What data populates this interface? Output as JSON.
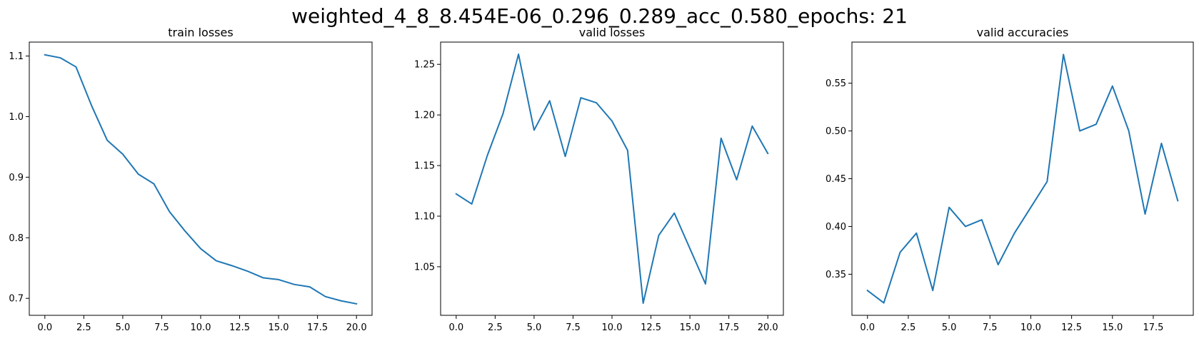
{
  "figure_title": "weighted_4_8_8.454E-06_0.296_0.289_acc_0.580_epochs: 21",
  "line_color": "#1f77b4",
  "chart_data": [
    {
      "type": "line",
      "title": "train losses",
      "x": [
        0,
        1,
        2,
        3,
        4,
        5,
        6,
        7,
        8,
        9,
        10,
        11,
        12,
        13,
        14,
        15,
        16,
        17,
        18,
        19,
        20
      ],
      "values": [
        1.102,
        1.097,
        1.082,
        1.018,
        0.961,
        0.938,
        0.905,
        0.889,
        0.843,
        0.811,
        0.782,
        0.762,
        0.754,
        0.745,
        0.734,
        0.731,
        0.723,
        0.719,
        0.703,
        0.696,
        0.691
      ],
      "xlim": [
        -1.0,
        21.0
      ],
      "ylim": [
        0.672,
        1.123
      ],
      "xticks": [
        0.0,
        2.5,
        5.0,
        7.5,
        10.0,
        12.5,
        15.0,
        17.5,
        20.0
      ],
      "xtick_labels": [
        "0.0",
        "2.5",
        "5.0",
        "7.5",
        "10.0",
        "12.5",
        "15.0",
        "17.5",
        "20.0"
      ],
      "yticks": [
        0.7,
        0.8,
        0.9,
        1.0,
        1.1
      ],
      "ytick_labels": [
        "0.7",
        "0.8",
        "0.9",
        "1.0",
        "1.1"
      ],
      "grid": false
    },
    {
      "type": "line",
      "title": "valid losses",
      "x": [
        0,
        1,
        2,
        3,
        4,
        5,
        6,
        7,
        8,
        9,
        10,
        11,
        12,
        13,
        14,
        15,
        16,
        17,
        18,
        19,
        20
      ],
      "values": [
        1.122,
        1.112,
        1.16,
        1.201,
        1.26,
        1.185,
        1.214,
        1.159,
        1.217,
        1.212,
        1.194,
        1.165,
        1.014,
        1.081,
        1.103,
        1.068,
        1.033,
        1.177,
        1.136,
        1.189,
        1.162
      ],
      "xlim": [
        -1.0,
        21.0
      ],
      "ylim": [
        1.002,
        1.272
      ],
      "xticks": [
        0.0,
        2.5,
        5.0,
        7.5,
        10.0,
        12.5,
        15.0,
        17.5,
        20.0
      ],
      "xtick_labels": [
        "0.0",
        "2.5",
        "5.0",
        "7.5",
        "10.0",
        "12.5",
        "15.0",
        "17.5",
        "20.0"
      ],
      "yticks": [
        1.05,
        1.1,
        1.15,
        1.2,
        1.25
      ],
      "ytick_labels": [
        "1.05",
        "1.10",
        "1.15",
        "1.20",
        "1.25"
      ],
      "grid": false
    },
    {
      "type": "line",
      "title": "valid accuracies",
      "x": [
        0,
        1,
        2,
        3,
        4,
        5,
        6,
        7,
        8,
        9,
        10,
        11,
        12,
        13,
        14,
        15,
        16,
        17,
        18,
        19
      ],
      "values": [
        0.333,
        0.32,
        0.373,
        0.393,
        0.333,
        0.42,
        0.4,
        0.407,
        0.36,
        0.393,
        0.42,
        0.447,
        0.58,
        0.5,
        0.507,
        0.547,
        0.5,
        0.413,
        0.487,
        0.427
      ],
      "xlim": [
        -0.95,
        19.95
      ],
      "ylim": [
        0.307,
        0.593
      ],
      "xticks": [
        0.0,
        2.5,
        5.0,
        7.5,
        10.0,
        12.5,
        15.0,
        17.5
      ],
      "xtick_labels": [
        "0.0",
        "2.5",
        "5.0",
        "7.5",
        "10.0",
        "12.5",
        "15.0",
        "17.5"
      ],
      "yticks": [
        0.35,
        0.4,
        0.45,
        0.5,
        0.55
      ],
      "ytick_labels": [
        "0.35",
        "0.40",
        "0.45",
        "0.50",
        "0.55"
      ],
      "grid": false
    }
  ]
}
